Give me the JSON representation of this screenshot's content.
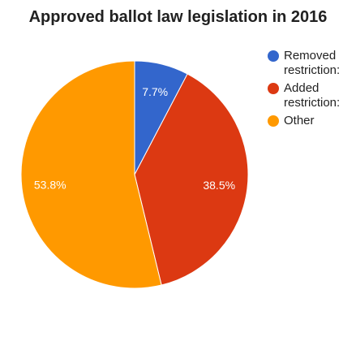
{
  "chart_data": {
    "type": "pie",
    "title": "Approved ballot law legislation in 2016",
    "slices": [
      {
        "label": "Removed restrictions",
        "legend_text": [
          "Removed",
          "restriction:"
        ],
        "value": 7.7,
        "display": "7.7%",
        "color": "#3366cc"
      },
      {
        "label": "Added restrictions",
        "legend_text": [
          "Added",
          "restriction:"
        ],
        "value": 38.5,
        "display": "38.5%",
        "color": "#dc3912"
      },
      {
        "label": "Other",
        "legend_text": [
          "Other"
        ],
        "value": 53.8,
        "display": "53.8%",
        "color": "#ff9900"
      }
    ],
    "legend_position": "right",
    "start_angle_deg": 0
  }
}
